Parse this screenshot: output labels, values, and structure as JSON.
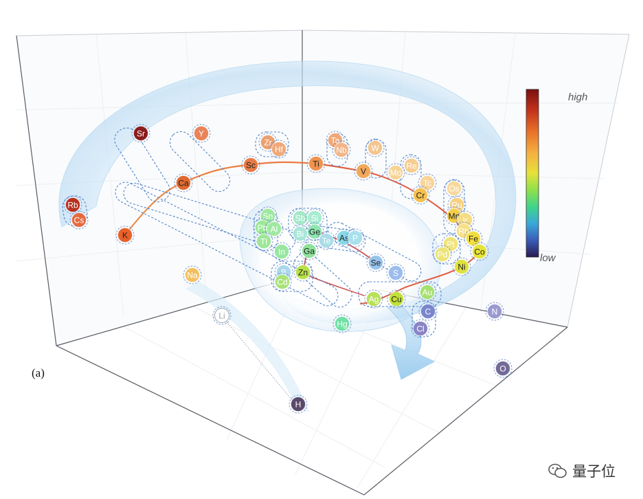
{
  "panel_label": "(a)",
  "colorbar": {
    "high_label": "high",
    "low_label": "low",
    "stops": [
      "#7a1010",
      "#c0301a",
      "#e8702a",
      "#f5b040",
      "#e6e23a",
      "#8fe04a",
      "#3fd48a",
      "#3aa8d8",
      "#3a5cb8",
      "#2a1a50"
    ]
  },
  "watermark": {
    "text": "量子位"
  },
  "elements": [
    {
      "symbol": "Sr",
      "color": "#8b1c1c",
      "text_color": "#ffffff"
    },
    {
      "symbol": "Y",
      "color": "#e8835a",
      "text_color": "#ffffff"
    },
    {
      "symbol": "Rb",
      "color": "#b8301c",
      "text_color": "#ffffff"
    },
    {
      "symbol": "Cs",
      "color": "#e66a40",
      "text_color": "#ffffff"
    },
    {
      "symbol": "Ca",
      "color": "#e0692f",
      "text_color": "#222222"
    },
    {
      "symbol": "Sc",
      "color": "#e87a45",
      "text_color": "#222222"
    },
    {
      "symbol": "K",
      "color": "#e8602a",
      "text_color": "#222222"
    },
    {
      "symbol": "Zr",
      "color": "#eba070",
      "text_color": "#ffffff"
    },
    {
      "symbol": "Hf",
      "color": "#f0a878",
      "text_color": "#ffffff"
    },
    {
      "symbol": "Ta",
      "color": "#f0a878",
      "text_color": "#ffffff"
    },
    {
      "symbol": "Nb",
      "color": "#f2b488",
      "text_color": "#ffffff"
    },
    {
      "symbol": "Ti",
      "color": "#f0934f",
      "text_color": "#222222"
    },
    {
      "symbol": "W",
      "color": "#f5c58e",
      "text_color": "#ffffff"
    },
    {
      "symbol": "V",
      "color": "#f2a85c",
      "text_color": "#222222"
    },
    {
      "symbol": "Mo",
      "color": "#f7d496",
      "text_color": "#ffffff"
    },
    {
      "symbol": "Re",
      "color": "#f6cd90",
      "text_color": "#ffffff"
    },
    {
      "symbol": "Tc",
      "color": "#f8d496",
      "text_color": "#ffffff"
    },
    {
      "symbol": "Cr",
      "color": "#f5c050",
      "text_color": "#222222"
    },
    {
      "symbol": "Os",
      "color": "#f8d89c",
      "text_color": "#ffffff"
    },
    {
      "symbol": "Ru",
      "color": "#f8d080",
      "text_color": "#ffffff"
    },
    {
      "symbol": "Mn",
      "color": "#f3cf48",
      "text_color": "#222222"
    },
    {
      "symbol": "Ir",
      "color": "#f6dc82",
      "text_color": "#ffffff"
    },
    {
      "symbol": "Rh",
      "color": "#f5df88",
      "text_color": "#ffffff"
    },
    {
      "symbol": "Fe",
      "color": "#f2de3e",
      "text_color": "#222222"
    },
    {
      "symbol": "Pt",
      "color": "#f0e47a",
      "text_color": "#ffffff"
    },
    {
      "symbol": "Co",
      "color": "#e6e43a",
      "text_color": "#222222"
    },
    {
      "symbol": "Pd",
      "color": "#ece476",
      "text_color": "#ffffff"
    },
    {
      "symbol": "Ni",
      "color": "#dfe23c",
      "text_color": "#222222"
    },
    {
      "symbol": "Na",
      "color": "#f2c060",
      "text_color": "#ffffff"
    },
    {
      "symbol": "Li",
      "color": "#ffffff",
      "text_color": "#9aa0a8"
    },
    {
      "symbol": "H",
      "color": "#5a4a6a",
      "text_color": "#ffffff"
    },
    {
      "symbol": "Sn",
      "color": "#9ee8a0",
      "text_color": "#ffffff"
    },
    {
      "symbol": "Sb",
      "color": "#a4e8c8",
      "text_color": "#ffffff"
    },
    {
      "symbol": "Si",
      "color": "#a8ecd0",
      "text_color": "#ffffff"
    },
    {
      "symbol": "Pb",
      "color": "#9ae896",
      "text_color": "#ffffff"
    },
    {
      "symbol": "Al",
      "color": "#a0e8a0",
      "text_color": "#ffffff"
    },
    {
      "symbol": "Ge",
      "color": "#8ee6b0",
      "text_color": "#222222"
    },
    {
      "symbol": "Bi",
      "color": "#a8e6d8",
      "text_color": "#ffffff"
    },
    {
      "symbol": "Te",
      "color": "#a8dce8",
      "text_color": "#ffffff"
    },
    {
      "symbol": "As",
      "color": "#88d8e8",
      "text_color": "#222222"
    },
    {
      "symbol": "P",
      "color": "#a8e0ec",
      "text_color": "#ffffff"
    },
    {
      "symbol": "Tl",
      "color": "#9ee698",
      "text_color": "#ffffff"
    },
    {
      "symbol": "In",
      "color": "#98e6a0",
      "text_color": "#ffffff"
    },
    {
      "symbol": "Ga",
      "color": "#8ee29a",
      "text_color": "#222222"
    },
    {
      "symbol": "Se",
      "color": "#98c4ec",
      "text_color": "#222222"
    },
    {
      "symbol": "S",
      "color": "#9cbcec",
      "text_color": "#ffffff"
    },
    {
      "symbol": "B",
      "color": "#a8d8ec",
      "text_color": "#ffffff"
    },
    {
      "symbol": "Zn",
      "color": "#b8e048",
      "text_color": "#222222"
    },
    {
      "symbol": "Cd",
      "color": "#a8e278",
      "text_color": "#ffffff"
    },
    {
      "symbol": "Hg",
      "color": "#70e0a4",
      "text_color": "#ffffff"
    },
    {
      "symbol": "Ag",
      "color": "#b8e05a",
      "text_color": "#ffffff"
    },
    {
      "symbol": "Cu",
      "color": "#c2e038",
      "text_color": "#222222"
    },
    {
      "symbol": "Au",
      "color": "#a6e070",
      "text_color": "#ffffff"
    },
    {
      "symbol": "C",
      "color": "#7a86cc",
      "text_color": "#ffffff"
    },
    {
      "symbol": "Cl",
      "color": "#8a84c4",
      "text_color": "#ffffff"
    },
    {
      "symbol": "N",
      "color": "#9a9ad0",
      "text_color": "#ffffff"
    },
    {
      "symbol": "O",
      "color": "#726a98",
      "text_color": "#ffffff"
    }
  ]
}
